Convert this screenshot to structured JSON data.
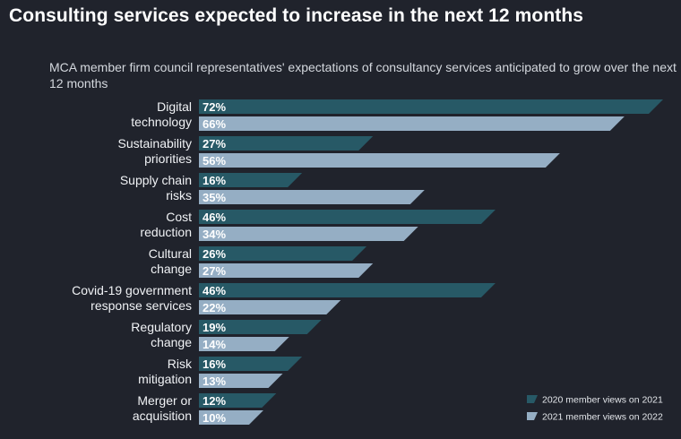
{
  "title": "Consulting services expected to increase in the next 12 months",
  "chart_data": {
    "type": "bar",
    "orientation": "horizontal",
    "title": "Consulting services expected to increase in the next 12 months",
    "subtitle": "MCA member firm council representatives' expectations of consultancy services anticipated to grow over the next 12 months",
    "xlabel": "",
    "ylabel": "",
    "xlim": [
      0,
      72
    ],
    "grid": false,
    "legend_position": "bottom-right",
    "categories": [
      [
        "Digital",
        "technology"
      ],
      [
        "Sustainability",
        "priorities"
      ],
      [
        "Supply chain",
        "risks"
      ],
      [
        "Cost",
        "reduction"
      ],
      [
        "Cultural",
        "change"
      ],
      [
        "Covid-19 government",
        "response services"
      ],
      [
        "Regulatory",
        "change"
      ],
      [
        "Risk",
        "mitigation"
      ],
      [
        "Merger or",
        "acquisition"
      ]
    ],
    "series": [
      {
        "name": "2020 member views on 2021",
        "color": "#275966",
        "values": [
          72,
          27,
          16,
          46,
          26,
          46,
          19,
          16,
          12
        ]
      },
      {
        "name": "2021 member views on 2022",
        "color": "#95aec4",
        "values": [
          66,
          56,
          35,
          34,
          27,
          22,
          14,
          13,
          10
        ]
      }
    ]
  }
}
